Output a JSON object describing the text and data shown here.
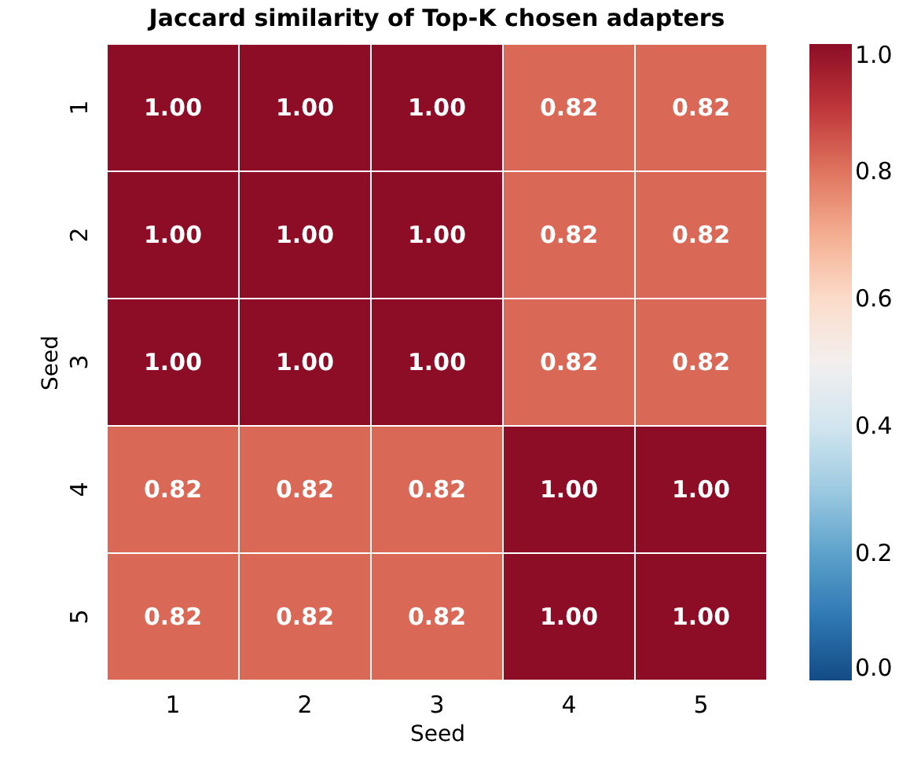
{
  "chart_data": {
    "type": "heatmap",
    "title": "Jaccard similarity of Top-K chosen adapters",
    "xlabel": "Seed",
    "ylabel": "Seed",
    "categories": [
      "1",
      "2",
      "3",
      "4",
      "5"
    ],
    "y_categories": [
      "1",
      "2",
      "3",
      "4",
      "5"
    ],
    "cells": [
      [
        1.0,
        1.0,
        1.0,
        0.82,
        0.82
      ],
      [
        1.0,
        1.0,
        1.0,
        0.82,
        0.82
      ],
      [
        1.0,
        1.0,
        1.0,
        0.82,
        0.82
      ],
      [
        0.82,
        0.82,
        0.82,
        1.0,
        1.0
      ],
      [
        0.82,
        0.82,
        0.82,
        1.0,
        1.0
      ]
    ],
    "cell_labels": [
      [
        "1.00",
        "1.00",
        "1.00",
        "0.82",
        "0.82"
      ],
      [
        "1.00",
        "1.00",
        "1.00",
        "0.82",
        "0.82"
      ],
      [
        "1.00",
        "1.00",
        "1.00",
        "0.82",
        "0.82"
      ],
      [
        "0.82",
        "0.82",
        "0.82",
        "1.00",
        "1.00"
      ],
      [
        "0.82",
        "0.82",
        "0.82",
        "1.00",
        "1.00"
      ]
    ],
    "clim": [
      0,
      1
    ],
    "cticks": [
      {
        "value": 0,
        "label": "0.0"
      },
      0.2,
      0.4,
      0.6,
      0.8,
      {
        "value": 1,
        "label": "1.0"
      }
    ]
  }
}
